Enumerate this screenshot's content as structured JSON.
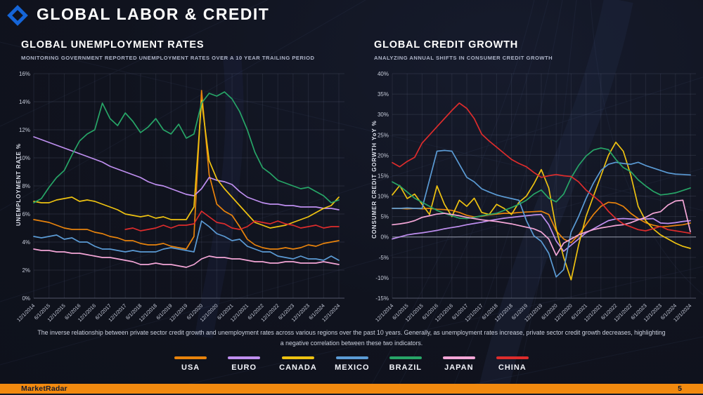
{
  "header": {
    "title": "GLOBAL LABOR & CREDIT"
  },
  "note": "The inverse relationship between private sector credit growth and unemployment rates across various regions over the past 10 years. Generally, as unemployment rates increase, private sector credit growth decreases, highlighting a negative correlation between these two indicators.",
  "legend": [
    {
      "label": "USA",
      "color": "#E8830C"
    },
    {
      "label": "EURO",
      "color": "#BF8FF0"
    },
    {
      "label": "CANADA",
      "color": "#EEC211"
    },
    {
      "label": "MEXICO",
      "color": "#5B9BD5"
    },
    {
      "label": "BRAZIL",
      "color": "#27A567"
    },
    {
      "label": "JAPAN",
      "color": "#F4A6D7"
    },
    {
      "label": "CHINA",
      "color": "#DD2C2C"
    }
  ],
  "footer": {
    "brand": "MarketRadar",
    "page_number": "5",
    "accent_color": "#F28A0F"
  },
  "chart_data": [
    {
      "type": "line",
      "title": "GLOBAL UNEMPLOYMENT RATES",
      "subtitle": "MONITORING GOVERNMENT REPORTED UNEMPLOYMENT RATES OVER A 10 YEAR TRAILING PERIOD",
      "xlabel": "",
      "ylabel": "UNEMPLOYMENT RATE %",
      "ylim": [
        0,
        16
      ],
      "ytick_step": 2,
      "grid": true,
      "legend_position": "bottom-shared",
      "x_interval": "quarterly, Dec 2014 - Dec 2024",
      "x_tick_labels": [
        "12/1/2014",
        "6/1/2015",
        "12/1/2015",
        "6/1/2016",
        "12/1/2016",
        "6/1/2017",
        "12/1/2017",
        "6/1/2018",
        "12/1/2018",
        "6/1/2019",
        "12/1/2019",
        "6/1/2020",
        "12/1/2020",
        "6/1/2021",
        "12/1/2021",
        "6/1/2022",
        "12/1/2022",
        "6/1/2023",
        "12/1/2023",
        "6/1/2024",
        "12/1/2024"
      ],
      "series": [
        {
          "name": "USA",
          "color": "#E8830C",
          "values": [
            5.6,
            5.5,
            5.4,
            5.2,
            5.0,
            4.9,
            4.9,
            4.9,
            4.7,
            4.6,
            4.4,
            4.3,
            4.1,
            4.1,
            3.9,
            3.8,
            3.8,
            3.9,
            3.7,
            3.6,
            3.5,
            4.4,
            14.8,
            8.8,
            6.7,
            6.2,
            5.9,
            5.1,
            4.2,
            3.8,
            3.6,
            3.5,
            3.5,
            3.6,
            3.5,
            3.6,
            3.8,
            3.7,
            3.9,
            4.0,
            4.1
          ]
        },
        {
          "name": "EURO",
          "color": "#BF8FF0",
          "values": [
            11.5,
            11.3,
            11.1,
            10.9,
            10.7,
            10.5,
            10.3,
            10.1,
            9.9,
            9.7,
            9.4,
            9.2,
            9.0,
            8.8,
            8.6,
            8.3,
            8.1,
            8.0,
            7.8,
            7.6,
            7.4,
            7.3,
            7.8,
            8.6,
            8.4,
            8.3,
            8.1,
            7.6,
            7.2,
            7.0,
            6.8,
            6.7,
            6.7,
            6.6,
            6.6,
            6.5,
            6.5,
            6.5,
            6.4,
            6.4,
            6.3
          ]
        },
        {
          "name": "CANADA",
          "color": "#EEC211",
          "values": [
            6.9,
            6.8,
            6.8,
            7.0,
            7.1,
            7.2,
            6.9,
            7.0,
            6.9,
            6.7,
            6.5,
            6.3,
            6.0,
            5.9,
            5.8,
            5.9,
            5.7,
            5.8,
            5.6,
            5.6,
            5.6,
            6.5,
            14.1,
            9.8,
            8.5,
            7.8,
            7.2,
            6.6,
            6.0,
            5.4,
            5.2,
            5.0,
            5.1,
            5.2,
            5.4,
            5.6,
            5.8,
            6.1,
            6.4,
            6.6,
            7.2
          ]
        },
        {
          "name": "MEXICO",
          "color": "#5B9BD5",
          "values": [
            4.4,
            4.3,
            4.4,
            4.5,
            4.2,
            4.3,
            4.0,
            4.0,
            3.7,
            3.5,
            3.5,
            3.4,
            3.3,
            3.4,
            3.3,
            3.3,
            3.3,
            3.5,
            3.6,
            3.5,
            3.4,
            3.3,
            5.5,
            5.1,
            4.6,
            4.4,
            4.1,
            4.2,
            3.7,
            3.5,
            3.3,
            3.3,
            3.0,
            2.9,
            2.8,
            3.0,
            2.8,
            2.8,
            2.7,
            3.0,
            2.7
          ]
        },
        {
          "name": "BRAZIL",
          "color": "#27A567",
          "values": [
            6.8,
            7.1,
            7.9,
            8.6,
            9.1,
            10.2,
            11.2,
            11.7,
            12.0,
            13.9,
            12.8,
            12.3,
            13.2,
            12.6,
            11.8,
            12.2,
            12.8,
            12.0,
            11.7,
            12.4,
            11.4,
            11.7,
            13.9,
            14.6,
            14.4,
            14.7,
            14.2,
            13.3,
            12.0,
            10.4,
            9.3,
            8.9,
            8.4,
            8.2,
            8.0,
            7.8,
            7.9,
            7.6,
            7.3,
            6.8,
            7.0
          ]
        },
        {
          "name": "JAPAN",
          "color": "#F4A6D7",
          "values": [
            3.5,
            3.4,
            3.4,
            3.3,
            3.3,
            3.2,
            3.2,
            3.1,
            3.0,
            2.9,
            2.9,
            2.8,
            2.7,
            2.6,
            2.4,
            2.4,
            2.5,
            2.4,
            2.4,
            2.3,
            2.2,
            2.4,
            2.8,
            3.0,
            2.9,
            2.9,
            2.8,
            2.8,
            2.7,
            2.6,
            2.6,
            2.5,
            2.5,
            2.6,
            2.6,
            2.5,
            2.5,
            2.5,
            2.6,
            2.5,
            2.4
          ]
        },
        {
          "name": "CHINA",
          "color": "#DD2C2C",
          "values": [
            null,
            null,
            null,
            null,
            null,
            null,
            null,
            null,
            null,
            null,
            null,
            null,
            4.9,
            5.0,
            4.8,
            4.9,
            5.0,
            5.2,
            5.0,
            5.2,
            5.2,
            5.3,
            6.2,
            5.8,
            5.4,
            5.3,
            5.0,
            4.9,
            5.1,
            5.5,
            5.4,
            5.3,
            5.5,
            5.3,
            5.2,
            5.0,
            5.1,
            5.2,
            5.0,
            5.1,
            5.1
          ]
        }
      ]
    },
    {
      "type": "line",
      "title": "GLOBAL CREDIT GROWTH",
      "subtitle": "ANALYZING ANNUAL SHIFTS IN CONSUMER CREDIT GROWTH",
      "xlabel": "",
      "ylabel": "CONSUMER CREDIT GORWTH YoY %",
      "ylim": [
        -15,
        40
      ],
      "ytick_step": 5,
      "grid": true,
      "zero_line": true,
      "legend_position": "bottom-shared",
      "x_interval": "quarterly, Dec 2014 - Dec 2024",
      "x_tick_labels": [
        "12/1/2014",
        "6/1/2015",
        "12/1/2015",
        "6/1/2016",
        "12/1/2016",
        "6/1/2017",
        "12/1/2017",
        "6/1/2018",
        "12/1/2018",
        "6/1/2019",
        "12/1/2019",
        "6/1/2020",
        "12/1/2020",
        "6/1/2021",
        "12/1/2021",
        "6/1/2022",
        "12/1/2022",
        "6/1/2023",
        "12/1/2023",
        "6/1/2024",
        "12/1/2024"
      ],
      "series": [
        {
          "name": "USA",
          "color": "#E8830C",
          "values": [
            7.0,
            7.0,
            6.9,
            7.0,
            6.9,
            7.0,
            6.8,
            6.7,
            6.5,
            6.0,
            5.3,
            4.9,
            5.1,
            5.4,
            5.6,
            5.8,
            5.8,
            6.0,
            6.1,
            6.2,
            6.3,
            5.5,
            1.5,
            -0.5,
            -1.4,
            0.5,
            3.0,
            5.5,
            7.5,
            8.5,
            8.3,
            7.5,
            5.8,
            4.5,
            3.5,
            2.9,
            2.5,
            2.6,
            2.8,
            3.0,
            3.4
          ]
        },
        {
          "name": "EURO",
          "color": "#BF8FF0",
          "values": [
            -0.5,
            0.0,
            0.5,
            0.8,
            1.0,
            1.3,
            1.6,
            2.0,
            2.3,
            2.6,
            3.0,
            3.3,
            3.6,
            4.0,
            4.3,
            4.6,
            4.8,
            5.0,
            5.2,
            5.4,
            5.5,
            3.0,
            -1.0,
            -3.5,
            -2.0,
            -0.5,
            1.0,
            2.0,
            3.0,
            4.0,
            4.4,
            4.5,
            4.4,
            4.3,
            4.4,
            4.5,
            3.4,
            3.3,
            3.5,
            3.8,
            4.0
          ]
        },
        {
          "name": "CANADA",
          "color": "#EEC211",
          "values": [
            10.3,
            12.6,
            9.4,
            10.5,
            8.0,
            5.5,
            12.5,
            8.0,
            5.0,
            9.0,
            7.5,
            9.5,
            6.0,
            5.5,
            8.0,
            7.0,
            5.5,
            8.5,
            10.0,
            13.0,
            16.5,
            12.0,
            2.0,
            -5.0,
            -10.5,
            -2.0,
            5.0,
            10.0,
            15.0,
            20.0,
            23.2,
            21.0,
            15.2,
            7.5,
            4.0,
            2.0,
            0.5,
            -0.5,
            -1.5,
            -2.3,
            -2.8
          ]
        },
        {
          "name": "MEXICO",
          "color": "#5B9BD5",
          "values": [
            7.0,
            7.0,
            7.1,
            7.0,
            7.0,
            14.0,
            21.0,
            21.2,
            21.0,
            17.8,
            14.6,
            13.5,
            11.8,
            11.0,
            10.3,
            9.8,
            9.4,
            9.0,
            4.0,
            0.3,
            -1.1,
            -4.0,
            -9.8,
            -8.0,
            1.2,
            5.0,
            9.4,
            13.2,
            16.3,
            17.8,
            18.3,
            18.0,
            17.8,
            18.3,
            17.5,
            16.9,
            16.3,
            15.7,
            15.4,
            15.3,
            15.2
          ]
        },
        {
          "name": "BRAZIL",
          "color": "#27A567",
          "values": [
            13.5,
            12.5,
            11.0,
            9.5,
            8.5,
            7.5,
            6.5,
            5.8,
            5.2,
            4.6,
            4.5,
            4.8,
            5.2,
            5.5,
            5.8,
            6.5,
            7.2,
            8.0,
            9.0,
            10.5,
            11.5,
            9.5,
            8.6,
            10.5,
            14.5,
            17.5,
            19.8,
            21.3,
            21.8,
            21.4,
            19.0,
            17.0,
            16.0,
            14.0,
            12.5,
            11.2,
            10.3,
            10.5,
            10.8,
            11.4,
            12.0
          ]
        },
        {
          "name": "JAPAN",
          "color": "#F4A6D7",
          "values": [
            3.0,
            3.2,
            3.5,
            4.0,
            4.8,
            5.2,
            5.6,
            5.8,
            5.5,
            5.2,
            4.8,
            4.5,
            4.2,
            4.0,
            3.8,
            3.5,
            3.2,
            2.8,
            2.4,
            2.0,
            1.2,
            -0.5,
            -4.5,
            -1.5,
            -0.5,
            0.5,
            1.2,
            1.8,
            2.2,
            2.5,
            2.8,
            3.0,
            3.5,
            4.2,
            4.8,
            5.8,
            6.2,
            7.8,
            8.8,
            9.0,
            1.3
          ]
        },
        {
          "name": "CHINA",
          "color": "#DD2C2C",
          "values": [
            18.2,
            17.2,
            18.5,
            19.5,
            23.0,
            25.0,
            27.0,
            29.0,
            31.0,
            32.8,
            31.5,
            29.0,
            25.2,
            23.5,
            22.0,
            20.5,
            19.0,
            18.0,
            17.2,
            15.8,
            14.6,
            15.0,
            15.3,
            15.0,
            14.8,
            13.5,
            11.5,
            10.0,
            8.5,
            6.3,
            4.5,
            3.2,
            2.5,
            1.8,
            1.5,
            2.0,
            2.6,
            1.8,
            1.5,
            1.2,
            0.9
          ]
        }
      ]
    }
  ]
}
